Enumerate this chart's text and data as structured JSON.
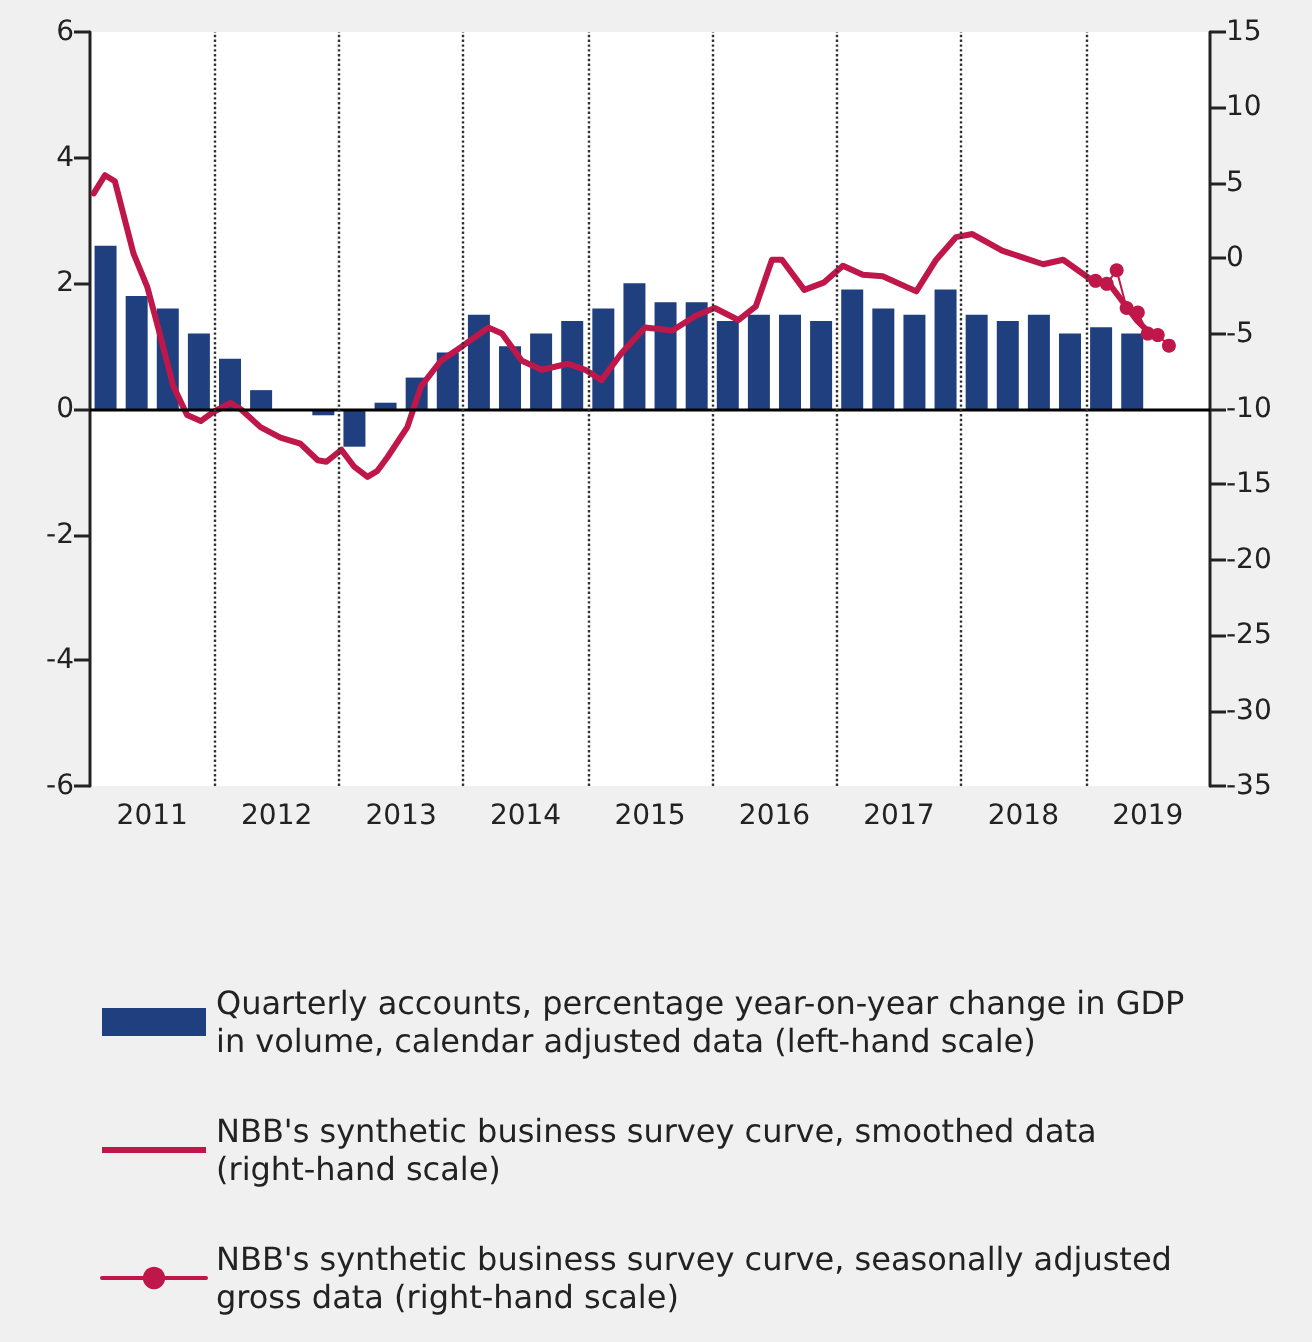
{
  "chart_data": {
    "type": "bar",
    "xlim": [
      2011,
      2020
    ],
    "xticks": [
      {
        "value": 2011.5,
        "label": "2011"
      },
      {
        "value": 2012.5,
        "label": "2012"
      },
      {
        "value": 2013.5,
        "label": "2013"
      },
      {
        "value": 2014.5,
        "label": "2014"
      },
      {
        "value": 2015.5,
        "label": "2015"
      },
      {
        "value": 2016.5,
        "label": "2016"
      },
      {
        "value": 2017.5,
        "label": "2017"
      },
      {
        "value": 2018.5,
        "label": "2018"
      },
      {
        "value": 2019.5,
        "label": "2019"
      }
    ],
    "ylim": [
      -6,
      6
    ],
    "yticks": [
      -6,
      -4,
      -2,
      0,
      2,
      4,
      6
    ],
    "y2lim": [
      -35,
      15
    ],
    "y2ticks": [
      -35,
      -30,
      -25,
      -20,
      -15,
      -10,
      -5,
      0,
      5,
      10,
      15
    ],
    "legend": "bottom",
    "ref_lines": [
      {
        "axis": "y",
        "value": 0,
        "color": "#000000",
        "line_style": "solid"
      },
      {
        "axis": "x",
        "value": 2012,
        "color": "#333333",
        "line_style": "dotted"
      },
      {
        "axis": "x",
        "value": 2013,
        "color": "#333333",
        "line_style": "dotted"
      },
      {
        "axis": "x",
        "value": 2014,
        "color": "#333333",
        "line_style": "dotted"
      },
      {
        "axis": "x",
        "value": 2015,
        "color": "#333333",
        "line_style": "dotted"
      },
      {
        "axis": "x",
        "value": 2016,
        "color": "#333333",
        "line_style": "dotted"
      },
      {
        "axis": "x",
        "value": 2017,
        "color": "#333333",
        "line_style": "dotted"
      },
      {
        "axis": "x",
        "value": 2018,
        "color": "#333333",
        "line_style": "dotted"
      },
      {
        "axis": "x",
        "value": 2019,
        "color": "#333333",
        "line_style": "dotted"
      }
    ],
    "series": [
      {
        "name": "Quarterly accounts, percentage year-on-year change in GDP in volume, calendar adjusted data (left-hand scale)",
        "color": "#1f3f7f",
        "x": [
          2011.125,
          2011.375,
          2011.625,
          2011.875,
          2012.125,
          2012.375,
          2012.625,
          2012.875,
          2013.125,
          2013.375,
          2013.625,
          2013.875,
          2014.125,
          2014.375,
          2014.625,
          2014.875,
          2015.125,
          2015.375,
          2015.625,
          2015.875,
          2016.125,
          2016.375,
          2016.625,
          2016.875,
          2017.125,
          2017.375,
          2017.625,
          2017.875,
          2018.125,
          2018.375,
          2018.625,
          2018.875,
          2019.125,
          2019.375
        ],
        "values": [
          2.6,
          1.8,
          1.6,
          1.2,
          0.8,
          0.3,
          0,
          -0.1,
          -0.6,
          0.1,
          0.5,
          0.9,
          1.5,
          1.0,
          1.2,
          1.4,
          1.6,
          2.0,
          1.7,
          1.7,
          1.4,
          1.5,
          1.5,
          1.4,
          1.9,
          1.6,
          1.5,
          1.9,
          1.5,
          1.4,
          1.5,
          1.2,
          1.3,
          1.2
        ]
      },
      {
        "name": "NBB's synthetic business survey curve, smoothed data (right-hand scale)",
        "type": "line",
        "axis": "y2",
        "color": "#c0174a",
        "marker": "none",
        "x": [
          2011.03,
          2011.12,
          2011.2,
          2011.35,
          2011.46,
          2011.56,
          2011.67,
          2011.78,
          2011.89,
          2011.99,
          2012.13,
          2012.21,
          2012.37,
          2012.53,
          2012.69,
          2012.83,
          2012.9,
          2013.02,
          2013.12,
          2013.23,
          2013.31,
          2013.39,
          2013.55,
          2013.66,
          2013.82,
          2013.98,
          2014.2,
          2014.31,
          2014.47,
          2014.63,
          2014.84,
          2014.98,
          2015.11,
          2015.27,
          2015.46,
          2015.68,
          2015.87,
          2016.02,
          2016.21,
          2016.35,
          2016.48,
          2016.56,
          2016.74,
          2016.9,
          2017.05,
          2017.21,
          2017.37,
          2017.64,
          2017.8,
          2017.96,
          2018.09,
          2018.33,
          2018.66,
          2018.82,
          2019.04,
          2019.2,
          2019.41,
          2019.52
        ],
        "values": [
          4.3,
          5.5,
          5.1,
          0.3,
          -1.9,
          -5,
          -8.5,
          -10.4,
          -10.8,
          -10.2,
          -9.6,
          -10,
          -11.2,
          -11.9,
          -12.3,
          -13.4,
          -13.5,
          -12.7,
          -13.8,
          -14.5,
          -14.1,
          -13.2,
          -11.2,
          -8.5,
          -6.8,
          -5.9,
          -4.6,
          -5,
          -6.8,
          -7.4,
          -7,
          -7.4,
          -8.1,
          -6.3,
          -4.6,
          -4.8,
          -3.8,
          -3.3,
          -4.1,
          -3.2,
          -0.1,
          -0.1,
          -2.1,
          -1.6,
          -0.5,
          -1.1,
          -1.2,
          -2.2,
          -0.1,
          1.4,
          1.6,
          0.5,
          -0.4,
          -0.1,
          -1.4,
          -1.8,
          -4.1,
          -5.0
        ]
      },
      {
        "name": "NBB's synthetic business survey curve, seasonally adjusted gross data (right-hand scale)",
        "type": "line",
        "axis": "y2",
        "color": "#c0174a",
        "marker": "circle",
        "x": [
          2019.08,
          2019.17,
          2019.25,
          2019.33,
          2019.42,
          2019.5,
          2019.58,
          2019.67
        ],
        "values": [
          -1.5,
          -1.7,
          -0.8,
          -3.3,
          -3.6,
          -5.0,
          -5.1,
          -5.8
        ]
      }
    ]
  }
}
